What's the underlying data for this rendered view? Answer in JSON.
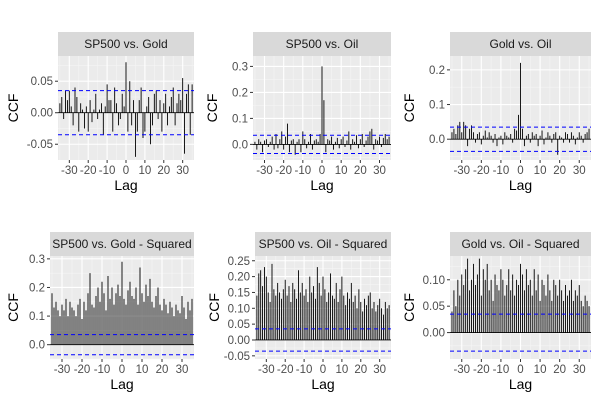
{
  "figure": {
    "xlabel": "Lag",
    "ylabel": "CCF"
  },
  "chart_data": [
    {
      "type": "bar",
      "title": "SP500 vs. Gold",
      "xlabel": "Lag",
      "ylabel": "CCF",
      "xlim": [
        -36,
        36
      ],
      "xticks": [
        -30,
        -20,
        -10,
        0,
        10,
        20,
        30
      ],
      "xtick_labels": [
        "-30",
        "-20",
        "-10",
        "0",
        "10",
        "20",
        "30"
      ],
      "ylim": [
        -0.075,
        0.09
      ],
      "yticks": [
        -0.05,
        0.0,
        0.05
      ],
      "ytick_labels": [
        "-0.05",
        "0.00",
        "0.05"
      ],
      "ci": 0.035,
      "x": [
        -35,
        -34,
        -33,
        -32,
        -31,
        -30,
        -29,
        -28,
        -27,
        -26,
        -25,
        -24,
        -23,
        -22,
        -21,
        -20,
        -19,
        -18,
        -17,
        -16,
        -15,
        -14,
        -13,
        -12,
        -11,
        -10,
        -9,
        -8,
        -7,
        -6,
        -5,
        -4,
        -3,
        -2,
        -1,
        0,
        1,
        2,
        3,
        4,
        5,
        6,
        7,
        8,
        9,
        10,
        11,
        12,
        13,
        14,
        15,
        16,
        17,
        18,
        19,
        20,
        21,
        22,
        23,
        24,
        25,
        26,
        27,
        28,
        29,
        30,
        31,
        32,
        33,
        34,
        35
      ],
      "values": [
        0.015,
        0.025,
        -0.01,
        0.035,
        0.02,
        0.035,
        0.01,
        -0.02,
        0.04,
        0.025,
        -0.03,
        0.015,
        0.005,
        -0.025,
        0.01,
        -0.03,
        0.02,
        -0.015,
        0.005,
        0.03,
        -0.01,
        0.005,
        0.015,
        -0.035,
        0.01,
        0.045,
        0.02,
        0.02,
        -0.03,
        0.04,
        0.015,
        -0.02,
        -0.01,
        0.03,
        0.01,
        0.08,
        -0.03,
        0.05,
        -0.02,
        0.02,
        -0.07,
        -0.03,
        0.02,
        0.04,
        -0.04,
        -0.03,
        0.01,
        0.025,
        -0.05,
        -0.02,
        0.03,
        0.035,
        -0.01,
        0.02,
        -0.03,
        0.015,
        0.03,
        -0.02,
        0.01,
        0.025,
        0.04,
        -0.02,
        0.015,
        0.03,
        0.02,
        0.055,
        -0.065,
        0.03,
        0.045,
        -0.035,
        0.045
      ]
    },
    {
      "type": "bar",
      "title": "SP500 vs. Oil",
      "xlabel": "Lag",
      "ylabel": "CCF",
      "xlim": [
        -36,
        36
      ],
      "xticks": [
        -30,
        -20,
        -10,
        0,
        10,
        20,
        30
      ],
      "xtick_labels": [
        "-30",
        "-20",
        "-10",
        "0",
        "10",
        "20",
        "30"
      ],
      "ylim": [
        -0.06,
        0.34
      ],
      "yticks": [
        0.0,
        0.1,
        0.2,
        0.3
      ],
      "ytick_labels": [
        "0.0",
        "0.1",
        "0.2",
        "0.3"
      ],
      "ci": 0.035,
      "x": [
        -35,
        -34,
        -33,
        -32,
        -31,
        -30,
        -29,
        -28,
        -27,
        -26,
        -25,
        -24,
        -23,
        -22,
        -21,
        -20,
        -19,
        -18,
        -17,
        -16,
        -15,
        -14,
        -13,
        -12,
        -11,
        -10,
        -9,
        -8,
        -7,
        -6,
        -5,
        -4,
        -3,
        -2,
        -1,
        0,
        1,
        2,
        3,
        4,
        5,
        6,
        7,
        8,
        9,
        10,
        11,
        12,
        13,
        14,
        15,
        16,
        17,
        18,
        19,
        20,
        21,
        22,
        23,
        24,
        25,
        26,
        27,
        28,
        29,
        30,
        31,
        32,
        33,
        34,
        35
      ],
      "values": [
        0.01,
        -0.02,
        0.02,
        0.01,
        -0.03,
        0.015,
        0.02,
        -0.01,
        0.01,
        0.03,
        -0.02,
        0.04,
        -0.015,
        0.02,
        0.05,
        -0.02,
        0.03,
        0.08,
        -0.03,
        0.015,
        0.02,
        -0.04,
        0.01,
        0.02,
        -0.03,
        0.05,
        0.02,
        -0.015,
        0.01,
        0.04,
        -0.02,
        0.015,
        0.02,
        0.01,
        0.04,
        0.3,
        0.17,
        -0.03,
        0.02,
        0.015,
        0.03,
        -0.02,
        0.01,
        0.025,
        -0.015,
        0.02,
        0.03,
        -0.01,
        0.015,
        0.05,
        -0.02,
        0.02,
        0.01,
        0.035,
        -0.015,
        0.02,
        0.04,
        -0.01,
        0.015,
        0.03,
        0.05,
        0.06,
        -0.02,
        0.02,
        0.015,
        0.03,
        -0.01,
        0.025,
        0.04,
        0.02,
        0.03
      ]
    },
    {
      "type": "bar",
      "title": "Gold vs. Oil",
      "xlabel": "Lag",
      "ylabel": "CCF",
      "xlim": [
        -36,
        36
      ],
      "xticks": [
        -30,
        -20,
        -10,
        0,
        10,
        20,
        30
      ],
      "xtick_labels": [
        "-30",
        "-20",
        "-10",
        "0",
        "10",
        "20",
        "30"
      ],
      "ylim": [
        -0.06,
        0.24
      ],
      "yticks": [
        0.0,
        0.1,
        0.2
      ],
      "ytick_labels": [
        "0.0",
        "0.1",
        "0.2"
      ],
      "ci": 0.035,
      "x": [
        -35,
        -34,
        -33,
        -32,
        -31,
        -30,
        -29,
        -28,
        -27,
        -26,
        -25,
        -24,
        -23,
        -22,
        -21,
        -20,
        -19,
        -18,
        -17,
        -16,
        -15,
        -14,
        -13,
        -12,
        -11,
        -10,
        -9,
        -8,
        -7,
        -6,
        -5,
        -4,
        -3,
        -2,
        -1,
        0,
        1,
        2,
        3,
        4,
        5,
        6,
        7,
        8,
        9,
        10,
        11,
        12,
        13,
        14,
        15,
        16,
        17,
        18,
        19,
        20,
        21,
        22,
        23,
        24,
        25,
        26,
        27,
        28,
        29,
        30,
        31,
        32,
        33,
        34,
        35
      ],
      "values": [
        0.02,
        0.03,
        0.015,
        0.04,
        0.05,
        0.02,
        0.05,
        0.04,
        -0.02,
        0.03,
        0.04,
        0.02,
        -0.01,
        0.015,
        0.02,
        -0.015,
        0.01,
        0.025,
        0.005,
        0.02,
        0.01,
        -0.01,
        0.015,
        -0.02,
        0.005,
        0.01,
        -0.015,
        0.02,
        0.01,
        0.005,
        0.015,
        -0.01,
        0.03,
        0.025,
        0.07,
        0.22,
        0.03,
        -0.02,
        0.01,
        0.015,
        -0.01,
        0.02,
        0.01,
        0.015,
        -0.02,
        0.01,
        0.025,
        -0.015,
        0.005,
        0.02,
        0.01,
        -0.01,
        0.015,
        0.02,
        -0.045,
        0.01,
        0.005,
        -0.01,
        0.02,
        0.015,
        -0.01,
        0.02,
        0.01,
        -0.015,
        0.005,
        0.02,
        0.01,
        -0.01,
        0.015,
        0.02,
        0.03
      ]
    },
    {
      "type": "bar",
      "title": "SP500 vs. Gold - Squared",
      "xlabel": "Lag",
      "ylabel": "CCF",
      "xlim": [
        -36,
        36
      ],
      "xticks": [
        -30,
        -20,
        -10,
        0,
        10,
        20,
        30
      ],
      "xtick_labels": [
        "-30",
        "-20",
        "-10",
        "0",
        "10",
        "20",
        "30"
      ],
      "ylim": [
        -0.05,
        0.31
      ],
      "yticks": [
        0.0,
        0.1,
        0.2,
        0.3
      ],
      "ytick_labels": [
        "0.0",
        "0.1",
        "0.2",
        "0.3"
      ],
      "ci": 0.035,
      "x": [
        -35,
        -34,
        -33,
        -32,
        -31,
        -30,
        -29,
        -28,
        -27,
        -26,
        -25,
        -24,
        -23,
        -22,
        -21,
        -20,
        -19,
        -18,
        -17,
        -16,
        -15,
        -14,
        -13,
        -12,
        -11,
        -10,
        -9,
        -8,
        -7,
        -6,
        -5,
        -4,
        -3,
        -2,
        -1,
        0,
        1,
        2,
        3,
        4,
        5,
        6,
        7,
        8,
        9,
        10,
        11,
        12,
        13,
        14,
        15,
        16,
        17,
        18,
        19,
        20,
        21,
        22,
        23,
        24,
        25,
        26,
        27,
        28,
        29,
        30,
        31,
        32,
        33,
        34,
        35
      ],
      "values": [
        0.18,
        0.13,
        0.15,
        0.12,
        0.1,
        0.14,
        0.12,
        0.16,
        0.1,
        0.15,
        0.13,
        0.12,
        0.1,
        0.14,
        0.16,
        0.09,
        0.15,
        0.12,
        0.18,
        0.25,
        0.14,
        0.13,
        0.17,
        0.2,
        0.15,
        0.22,
        0.18,
        0.12,
        0.24,
        0.16,
        0.2,
        0.14,
        0.18,
        0.21,
        0.17,
        0.29,
        0.16,
        0.14,
        0.19,
        0.22,
        0.17,
        0.16,
        0.2,
        0.14,
        0.27,
        0.18,
        0.15,
        0.21,
        0.17,
        0.23,
        0.15,
        0.13,
        0.17,
        0.2,
        0.14,
        0.12,
        0.16,
        0.14,
        0.11,
        0.15,
        0.13,
        0.1,
        0.14,
        0.12,
        0.11,
        0.17,
        0.13,
        0.09,
        0.15,
        0.12,
        0.16
      ]
    },
    {
      "type": "bar",
      "title": "SP500 vs. Oil - Squared",
      "xlabel": "Lag",
      "ylabel": "CCF",
      "xlim": [
        -36,
        36
      ],
      "xticks": [
        -30,
        -20,
        -10,
        0,
        10,
        20,
        30
      ],
      "xtick_labels": [
        "-30",
        "-20",
        "-10",
        "0",
        "10",
        "20",
        "30"
      ],
      "ylim": [
        -0.06,
        0.265
      ],
      "yticks": [
        -0.05,
        0.0,
        0.05,
        0.1,
        0.15,
        0.2,
        0.25
      ],
      "ytick_labels": [
        "-0.05",
        "0.00",
        "0.05",
        "0.10",
        "0.15",
        "0.20",
        "0.25"
      ],
      "ci": 0.035,
      "x": [
        -35,
        -34,
        -33,
        -32,
        -31,
        -30,
        -29,
        -28,
        -27,
        -26,
        -25,
        -24,
        -23,
        -22,
        -21,
        -20,
        -19,
        -18,
        -17,
        -16,
        -15,
        -14,
        -13,
        -12,
        -11,
        -10,
        -9,
        -8,
        -7,
        -6,
        -5,
        -4,
        -3,
        -2,
        -1,
        0,
        1,
        2,
        3,
        4,
        5,
        6,
        7,
        8,
        9,
        10,
        11,
        12,
        13,
        14,
        15,
        16,
        17,
        18,
        19,
        20,
        21,
        22,
        23,
        24,
        25,
        26,
        27,
        28,
        29,
        30,
        31,
        32,
        33,
        34,
        35
      ],
      "values": [
        0.14,
        0.21,
        0.22,
        0.17,
        0.23,
        0.2,
        0.15,
        0.12,
        0.24,
        0.16,
        0.14,
        0.18,
        0.15,
        0.13,
        0.16,
        0.19,
        0.14,
        0.17,
        0.12,
        0.18,
        0.16,
        0.13,
        0.22,
        0.15,
        0.18,
        0.14,
        0.16,
        0.12,
        0.2,
        0.15,
        0.17,
        0.13,
        0.23,
        0.18,
        0.14,
        0.2,
        0.16,
        0.12,
        0.15,
        0.21,
        0.14,
        0.13,
        0.18,
        0.12,
        0.16,
        0.2,
        0.14,
        0.11,
        0.15,
        0.13,
        0.18,
        0.12,
        0.14,
        0.1,
        0.16,
        0.12,
        0.09,
        0.13,
        0.11,
        0.14,
        0.15,
        0.1,
        0.12,
        0.09,
        0.11,
        0.13,
        0.1,
        0.08,
        0.12,
        0.1,
        0.11
      ]
    },
    {
      "type": "bar",
      "title": "Gold vs. Oil - Squared",
      "xlabel": "Lag",
      "ylabel": "CCF",
      "xlim": [
        -36,
        36
      ],
      "xticks": [
        -30,
        -20,
        -10,
        0,
        10,
        20,
        30
      ],
      "xtick_labels": [
        "-30",
        "-20",
        "-10",
        "0",
        "10",
        "20",
        "30"
      ],
      "ylim": [
        -0.05,
        0.145
      ],
      "yticks": [
        0.0,
        0.05,
        0.1
      ],
      "ytick_labels": [
        "0.00",
        "0.05",
        "0.10"
      ],
      "ci": 0.035,
      "x": [
        -35,
        -34,
        -33,
        -32,
        -31,
        -30,
        -29,
        -28,
        -27,
        -26,
        -25,
        -24,
        -23,
        -22,
        -21,
        -20,
        -19,
        -18,
        -17,
        -16,
        -15,
        -14,
        -13,
        -12,
        -11,
        -10,
        -9,
        -8,
        -7,
        -6,
        -5,
        -4,
        -3,
        -2,
        -1,
        0,
        1,
        2,
        3,
        4,
        5,
        6,
        7,
        8,
        9,
        10,
        11,
        12,
        13,
        14,
        15,
        16,
        17,
        18,
        19,
        20,
        21,
        22,
        23,
        24,
        25,
        26,
        27,
        28,
        29,
        30,
        31,
        32,
        33,
        34,
        35
      ],
      "values": [
        0.04,
        0.08,
        0.05,
        0.1,
        0.07,
        0.11,
        0.09,
        0.12,
        0.14,
        0.08,
        0.1,
        0.13,
        0.09,
        0.11,
        0.14,
        0.07,
        0.12,
        0.1,
        0.13,
        0.08,
        0.1,
        0.06,
        0.11,
        0.09,
        0.08,
        0.12,
        0.1,
        0.07,
        0.09,
        0.12,
        0.08,
        0.11,
        0.07,
        0.1,
        0.09,
        0.13,
        0.11,
        0.08,
        0.12,
        0.09,
        0.1,
        0.07,
        0.12,
        0.08,
        0.11,
        0.06,
        0.1,
        0.09,
        0.07,
        0.11,
        0.08,
        0.06,
        0.1,
        0.09,
        0.07,
        0.1,
        0.08,
        0.06,
        0.09,
        0.07,
        0.08,
        0.1,
        0.06,
        0.08,
        0.07,
        0.09,
        0.06,
        0.05,
        0.07,
        0.06,
        0.05
      ]
    }
  ]
}
